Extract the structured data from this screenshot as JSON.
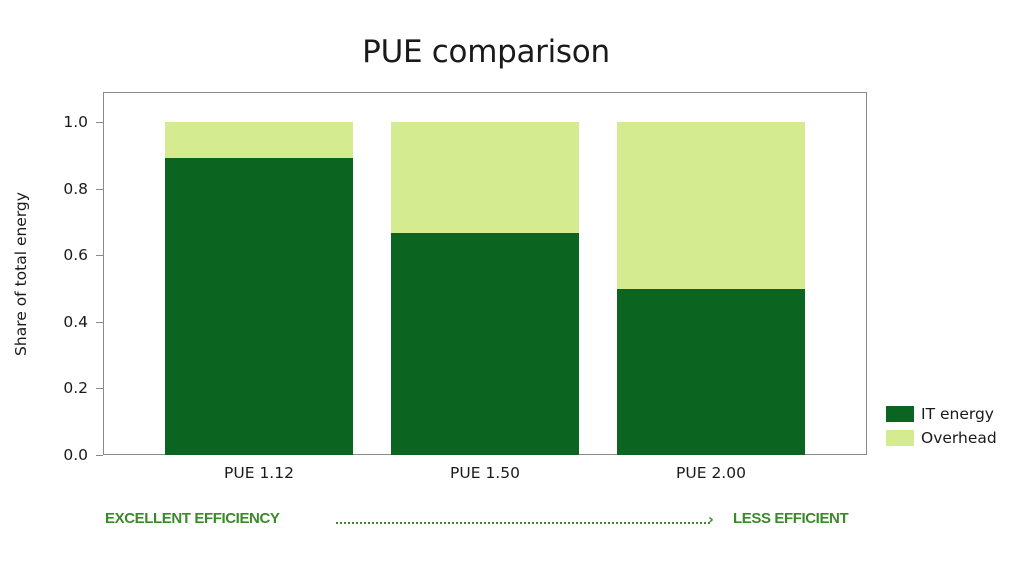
{
  "chart_data": {
    "type": "bar",
    "stacked": true,
    "title": "PUE comparison",
    "xlabel": "",
    "ylabel": "Share of total energy",
    "ylim": [
      0,
      1.0
    ],
    "yticks": [
      "0.0",
      "0.2",
      "0.4",
      "0.6",
      "0.8",
      "1.0"
    ],
    "categories": [
      "PUE 1.12",
      "PUE 1.50",
      "PUE 2.00"
    ],
    "series": [
      {
        "name": "IT energy",
        "color": "#0b6420",
        "values": [
          0.893,
          0.667,
          0.5
        ]
      },
      {
        "name": "Overhead",
        "color": "#d4eb8f",
        "values": [
          0.107,
          0.333,
          0.5
        ]
      }
    ],
    "grid": false,
    "legend_position": "right-bottom",
    "annotations": {
      "left": "EXCELLENT EFFICIENCY",
      "right": "LESS EFFICIENT",
      "arrow_color": "#3a8a2a"
    }
  }
}
